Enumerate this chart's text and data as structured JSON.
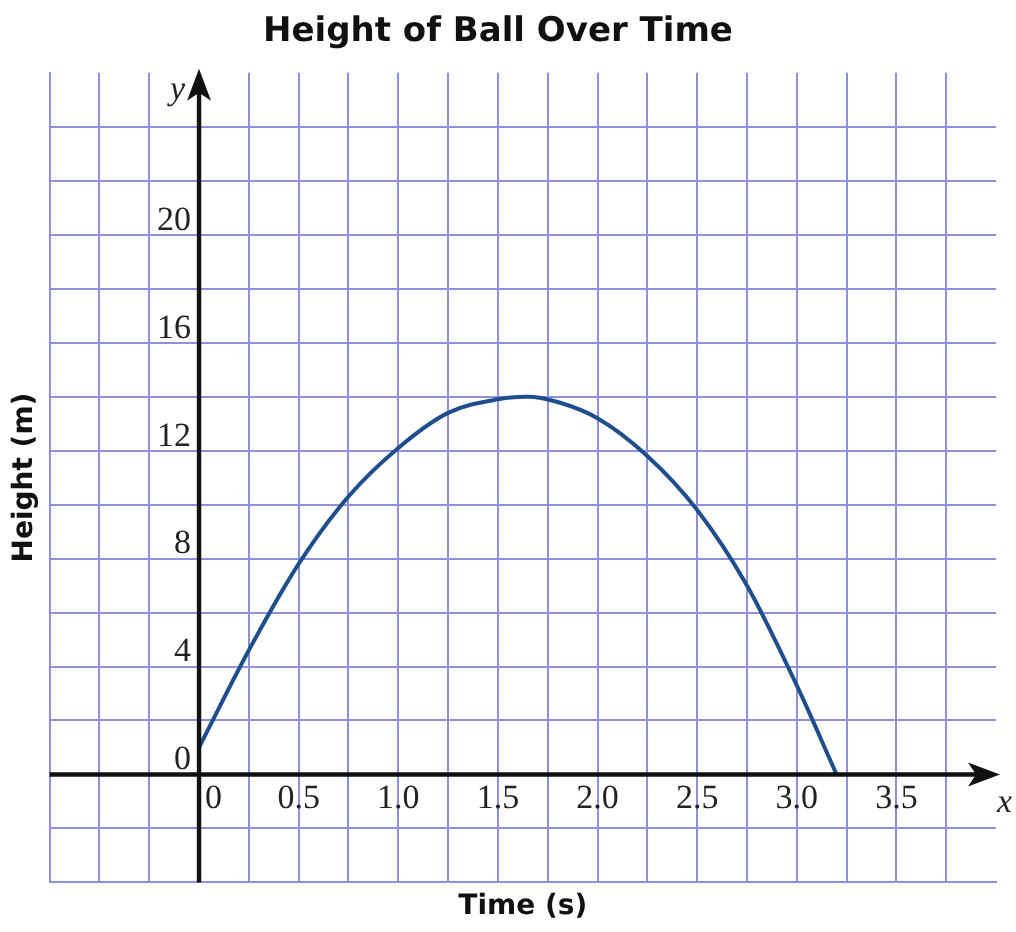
{
  "chart_data": {
    "type": "line",
    "title": "Height of Ball Over Time",
    "xlabel": "Time (s)",
    "ylabel": "Height (m)",
    "x": [
      0,
      0.25,
      0.5,
      0.75,
      1.0,
      1.25,
      1.5,
      1.65,
      1.8,
      2.0,
      2.25,
      2.5,
      2.75,
      3.0,
      3.2
    ],
    "series": [
      {
        "color": "#1f4e8c",
        "values": [
          1,
          4.6,
          7.8,
          10.3,
          12.1,
          13.4,
          13.9,
          14,
          13.8,
          13.2,
          11.8,
          9.8,
          7,
          3.3,
          0
        ]
      }
    ],
    "xlim": [
      -0.75,
      4.0
    ],
    "ylim": [
      -4,
      26
    ],
    "xticks": [
      {
        "value": -0.5,
        "label": null
      },
      {
        "value": -0.25,
        "label": null
      },
      0,
      {
        "value": 0.25,
        "label": null
      },
      0.5,
      {
        "value": 0.75,
        "label": null
      },
      {
        "value": 1,
        "label": "1.0"
      },
      {
        "value": 1.25,
        "label": null
      },
      1.5,
      {
        "value": 1.75,
        "label": null
      },
      {
        "value": 2,
        "label": "2.0"
      },
      {
        "value": 2.25,
        "label": null
      },
      2.5,
      {
        "value": 2.75,
        "label": null
      },
      {
        "value": 3,
        "label": "3.0"
      },
      {
        "value": 3.25,
        "label": null
      },
      3.5,
      {
        "value": 3.75,
        "label": null
      }
    ],
    "yticks": [
      {
        "value": -2,
        "label": null
      },
      0,
      {
        "value": 2,
        "label": null
      },
      4,
      {
        "value": 6,
        "label": null
      },
      8,
      {
        "value": 10,
        "label": null
      },
      12,
      {
        "value": 14,
        "label": null
      },
      16,
      {
        "value": 18,
        "label": null
      },
      20,
      {
        "value": 22,
        "label": null
      },
      {
        "value": 24,
        "label": null
      }
    ],
    "annotations": [
      "x",
      "y"
    ],
    "grid": true,
    "legend": false,
    "marker": "none",
    "line_style": "solid"
  }
}
